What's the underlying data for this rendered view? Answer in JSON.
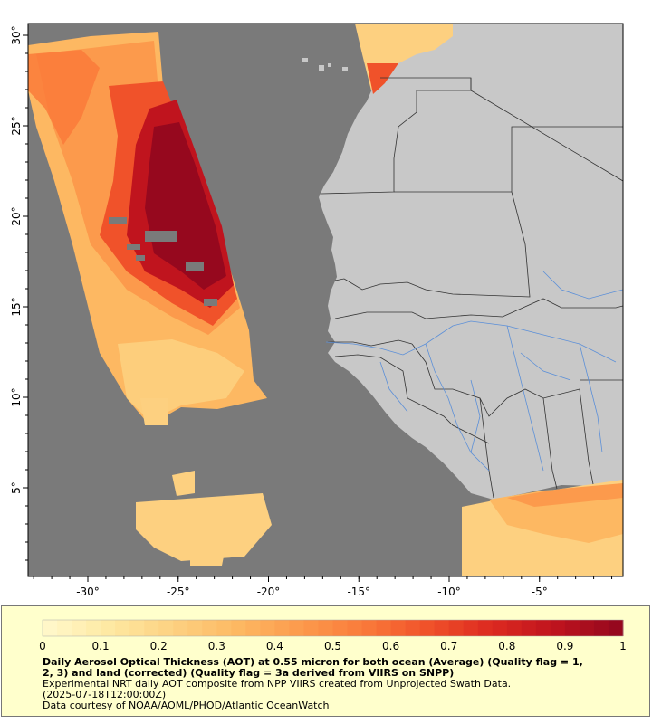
{
  "map": {
    "lon_ticks": [
      {
        "lon": -30,
        "label": "-30°"
      },
      {
        "lon": -25,
        "label": "-25°"
      },
      {
        "lon": -20,
        "label": "-20°"
      },
      {
        "lon": -15,
        "label": "-15°"
      },
      {
        "lon": -10,
        "label": "-10°"
      },
      {
        "lon": -5,
        "label": "-5°"
      }
    ],
    "lat_ticks": [
      {
        "lat": 30,
        "label": "30°"
      },
      {
        "lat": 25,
        "label": "25°"
      },
      {
        "lat": 20,
        "label": "20°"
      },
      {
        "lat": 15,
        "label": "15°"
      },
      {
        "lat": 10,
        "label": "10°"
      },
      {
        "lat": 5,
        "label": "5°"
      }
    ],
    "colors": {
      "ocean": "#7a7a7a",
      "land": "#c8c8c8",
      "border": "#333333",
      "river": "#5b8fd8"
    }
  },
  "colorbar": {
    "ticks": [
      "0",
      "0.1",
      "0.2",
      "0.3",
      "0.4",
      "0.5",
      "0.6",
      "0.7",
      "0.8",
      "0.9",
      "1"
    ],
    "colors": [
      "#fff7c8",
      "#fee8a0",
      "#fdd080",
      "#fdb862",
      "#fc9a4c",
      "#fa7a3a",
      "#f0522a",
      "#dd2a20",
      "#c0141e",
      "#96081e"
    ]
  },
  "caption": {
    "title_line1": "Daily Aerosol Optical Thickness (AOT) at 0.55 micron for both ocean (Average) (Quality flag = 1,",
    "title_line2": "2, 3) and land (corrected) (Quality flag = 3a derived from VIIRS on SNPP)",
    "line3": "Experimental NRT daily AOT composite from NPP VIIRS created from Unprojected Swath Data.",
    "line4": "(2025-07-18T12:00:00Z)",
    "line5": "Data courtesy of NOAA/AOML/PHOD/Atlantic OceanWatch"
  }
}
